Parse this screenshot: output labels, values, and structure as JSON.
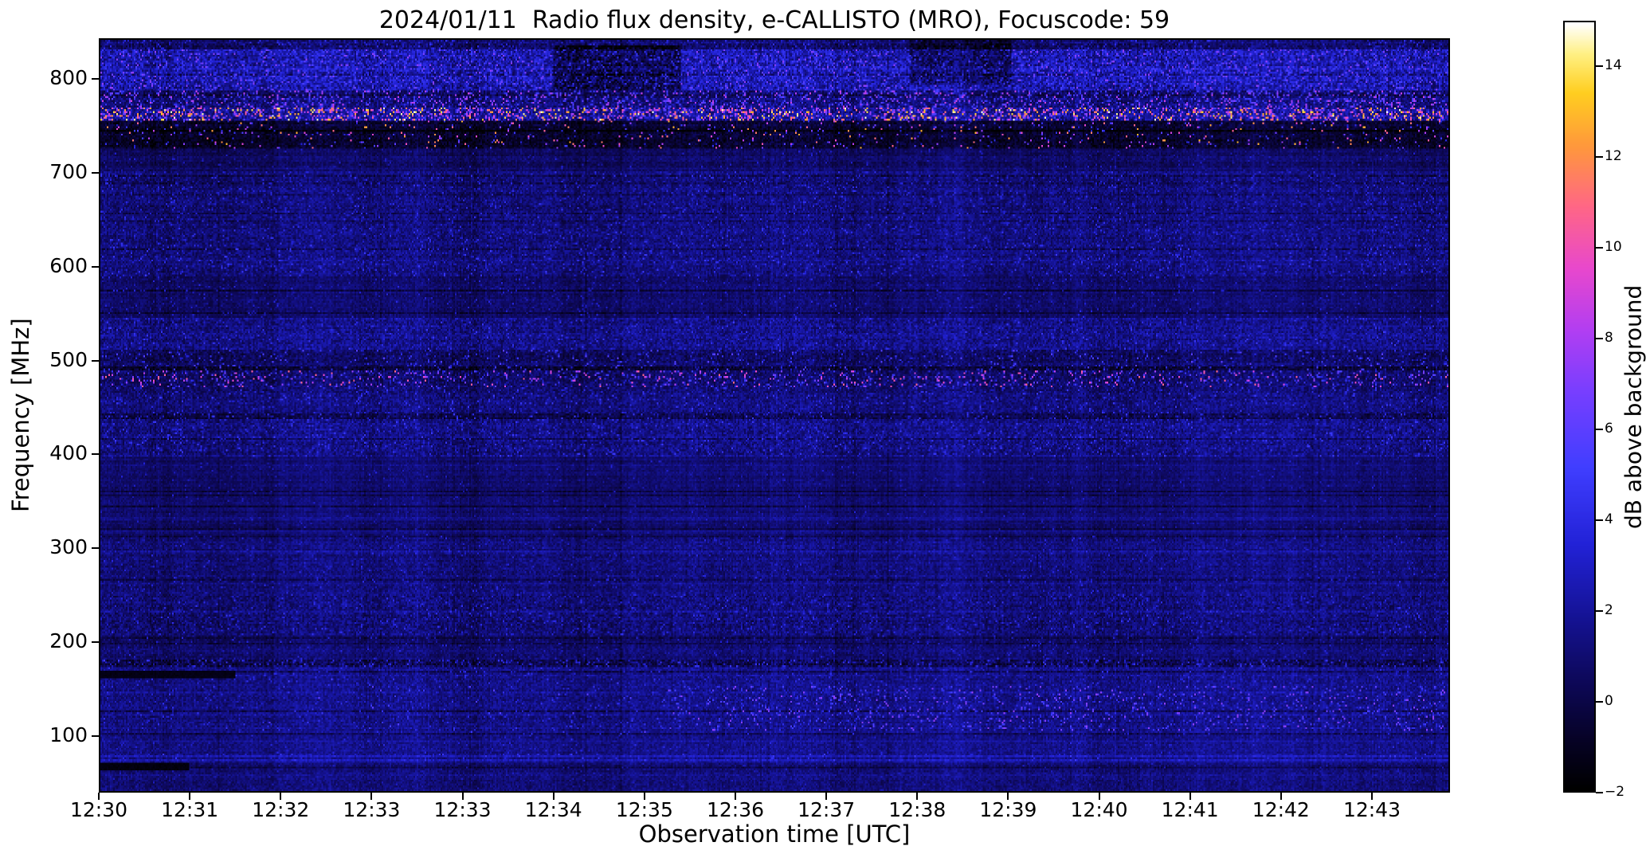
{
  "figure": {
    "title": "2024/01/11  Radio flux density, e-CALLISTO (MRO), Focuscode: 59"
  },
  "axes": {
    "xlabel": "Observation time [UTC]",
    "ylabel": "Frequency [MHz]",
    "x_tick_labels": [
      "12:30",
      "12:31",
      "12:32",
      "12:33",
      "12:33",
      "12:34",
      "12:35",
      "12:36",
      "12:37",
      "12:38",
      "12:39",
      "12:40",
      "12:41",
      "12:42",
      "12:43"
    ],
    "y_tick_values": [
      800,
      700,
      600,
      500,
      400,
      300,
      200,
      100
    ]
  },
  "colorbar": {
    "label": "dB above background",
    "limits": [
      -2,
      15
    ],
    "ticks": [
      {
        "value": 14,
        "label": "14"
      },
      {
        "value": 12,
        "label": "12"
      },
      {
        "value": 10,
        "label": "10"
      },
      {
        "value": 8,
        "label": "8"
      },
      {
        "value": 6,
        "label": "6"
      },
      {
        "value": 4,
        "label": "4"
      },
      {
        "value": 2,
        "label": "2"
      },
      {
        "value": 0,
        "label": "0"
      },
      {
        "value": -2,
        "label": "−2"
      }
    ]
  },
  "chart_data": {
    "type": "heatmap",
    "title": "2024/01/11  Radio flux density, e-CALLISTO (MRO), Focuscode: 59",
    "xlabel": "Observation time [UTC]",
    "ylabel": "Frequency [MHz]",
    "x_range_utc": [
      "12:30",
      "12:44"
    ],
    "x_tick_interval_fraction": 0.0673,
    "ylim_mhz": [
      40,
      843
    ],
    "color_limits_db": [
      -2,
      15
    ],
    "colormap": {
      "name": "gnuplot2-like (black-blue-purple-pink-orange-yellow-white)",
      "stops": [
        [
          0.0,
          0,
          0,
          0
        ],
        [
          0.06,
          6,
          2,
          35
        ],
        [
          0.14,
          13,
          8,
          88
        ],
        [
          0.22,
          20,
          18,
          145
        ],
        [
          0.32,
          34,
          34,
          215
        ],
        [
          0.42,
          64,
          62,
          255
        ],
        [
          0.52,
          120,
          62,
          255
        ],
        [
          0.6,
          178,
          62,
          242
        ],
        [
          0.68,
          232,
          72,
          205
        ],
        [
          0.76,
          255,
          102,
          135
        ],
        [
          0.84,
          255,
          152,
          60
        ],
        [
          0.91,
          255,
          206,
          32
        ],
        [
          0.96,
          255,
          240,
          130
        ],
        [
          1.0,
          255,
          255,
          255
        ]
      ]
    },
    "bands": [
      {
        "f": [
          832,
          843
        ],
        "base": 0.5,
        "noise": 1.1,
        "speckle_prob": 0.1,
        "speckle": [
          2,
          4.5
        ],
        "note": "dark mottled strip at top edge"
      },
      {
        "f": [
          788,
          832
        ],
        "base": 2.3,
        "noise": 1.7,
        "speckle_prob": 0.14,
        "speckle": [
          3.5,
          7.5
        ],
        "note": "bright purple-blue mottled RFI band ~790-830 MHz"
      },
      {
        "f": [
          770,
          788
        ],
        "base": 1.1,
        "noise": 1.3,
        "speckle_prob": 0.16,
        "speckle": [
          4,
          9
        ],
        "note": "mixed dark band with bright spots"
      },
      {
        "f": [
          757,
          770
        ],
        "base": 1.8,
        "noise": 1.5,
        "speckle_prob": 0.3,
        "speckle": [
          5,
          15
        ],
        "note": "strong RFI line ~760-770 MHz with orange/yellow bursts up to 15 dB"
      },
      {
        "f": [
          726,
          757
        ],
        "base": -0.8,
        "noise": 0.9,
        "speckle_prob": 0.05,
        "speckle": [
          3,
          13
        ],
        "note": "very dark band with sparse bright RFI dots"
      },
      {
        "f": [
          703,
          726
        ],
        "base": 0.6,
        "noise": 0.7,
        "speckle_prob": 0.02,
        "speckle": [
          2,
          3.5
        ],
        "note": "quiet dark blue band"
      },
      {
        "f": [
          624,
          703
        ],
        "base": 1.1,
        "noise": 1.0,
        "speckle_prob": 0.08,
        "speckle": [
          2,
          4.5
        ],
        "note": "textured speckly band 630-700 MHz"
      },
      {
        "f": [
          590,
          624
        ],
        "base": 1.2,
        "noise": 1.0,
        "speckle_prob": 0.09,
        "speckle": [
          2,
          5
        ],
        "note": "speckled rows near 600 MHz"
      },
      {
        "f": [
          545,
          590
        ],
        "base": 0.8,
        "noise": 0.7,
        "speckle_prob": 0.03,
        "speckle": [
          2,
          4
        ],
        "note": "quieter band"
      },
      {
        "f": [
          512,
          545
        ],
        "base": 1.5,
        "noise": 1.2,
        "speckle_prob": 0.06,
        "speckle": [
          2,
          5
        ],
        "note": "brighter blue band with dark rows ~530 MHz"
      },
      {
        "f": [
          489,
          512
        ],
        "base": 0.6,
        "noise": 1.0,
        "speckle_prob": 0.08,
        "speckle": [
          2,
          6
        ],
        "note": "dark speckled rows ~500 MHz"
      },
      {
        "f": [
          472,
          489
        ],
        "base": 0.7,
        "noise": 1.1,
        "speckle_prob": 0.13,
        "speckle": [
          3,
          11
        ],
        "note": "RFI speckle band ~480 MHz with pink/orange dots"
      },
      {
        "f": [
          438,
          472
        ],
        "base": 1.1,
        "noise": 1.0,
        "speckle_prob": 0.08,
        "speckle": [
          2,
          5
        ],
        "note": "speckled blue band"
      },
      {
        "f": [
          398,
          438
        ],
        "base": 1.2,
        "noise": 1.1,
        "speckle_prob": 0.1,
        "speckle": [
          2,
          5
        ],
        "note": "noisy band ~410-420 MHz"
      },
      {
        "f": [
          313,
          398
        ],
        "base": 0.85,
        "noise": 0.6,
        "speckle_prob": 0.015,
        "speckle": [
          2,
          3.5
        ],
        "note": "smooth quiet region 320-400 MHz"
      },
      {
        "f": [
          251,
          313
        ],
        "base": 1.15,
        "noise": 0.85,
        "speckle_prob": 0.04,
        "speckle": [
          2,
          4
        ],
        "note": "mottled region ~260-300 MHz"
      },
      {
        "f": [
          206,
          251
        ],
        "base": 1.0,
        "noise": 1.1,
        "speckle_prob": 0.07,
        "speckle": [
          2,
          4.5
        ],
        "note": "striped band with dark rows ~220 MHz"
      },
      {
        "f": [
          180,
          206
        ],
        "base": 0.9,
        "noise": 0.8,
        "speckle_prob": 0.03,
        "speckle": [
          2,
          4
        ],
        "note": "blue band"
      },
      {
        "f": [
          172,
          180
        ],
        "base": 0.2,
        "noise": 1.3,
        "speckle_prob": 0.12,
        "speckle": [
          2,
          5
        ],
        "note": "thin dark speckled line ~176 MHz"
      },
      {
        "f": [
          104,
          172
        ],
        "base": 1.4,
        "noise": 0.9,
        "speckle_prob": 0.05,
        "speckle": [
          2,
          4.5
        ],
        "note": "blue band; purple interference patches in right half"
      },
      {
        "f": [
          81,
          104
        ],
        "base": 1.5,
        "noise": 0.8,
        "speckle_prob": 0.03,
        "speckle": [
          2,
          4
        ],
        "note": "blue band"
      },
      {
        "f": [
          72,
          81
        ],
        "base": 2.6,
        "noise": 0.8,
        "speckle_prob": 0.04,
        "speckle": [
          3,
          5
        ],
        "note": "bright blue line ~76 MHz"
      },
      {
        "f": [
          40,
          72
        ],
        "base": 1.1,
        "noise": 0.8,
        "speckle_prob": 0.02,
        "speckle": [
          2,
          3
        ],
        "note": "bottom band"
      }
    ],
    "features": [
      {
        "t": [
          0.0,
          0.065
        ],
        "f": [
          62,
          70
        ],
        "mode": "set",
        "db": -1.6,
        "note": "black streak lower-left ~12:30-12:31"
      },
      {
        "t": [
          0.0,
          0.1
        ],
        "f": [
          160,
          168
        ],
        "mode": "set",
        "db": -1.4,
        "note": "black streak at left edge ~165 MHz"
      },
      {
        "t": [
          0.42,
          1.0
        ],
        "f": [
          105,
          152
        ],
        "mode": "speckle",
        "prob": 0.07,
        "range": [
          3.5,
          7.5
        ],
        "note": "purple interference patches, right half, 105-150 MHz"
      },
      {
        "t": [
          0.12,
          0.42
        ],
        "f": [
          100,
          160
        ],
        "mode": "speckle",
        "prob": 0.015,
        "range": [
          3,
          6
        ],
        "note": "sparse purple dots left-middle"
      },
      {
        "t": [
          0.335,
          0.43
        ],
        "f": [
          788,
          836
        ],
        "mode": "add",
        "db": -2.2,
        "note": "darker patch in upper band ~12:35"
      },
      {
        "t": [
          0.6,
          0.675
        ],
        "f": [
          795,
          843
        ],
        "mode": "add",
        "db": -1.8,
        "note": "darker patch in upper band ~12:38-12:39"
      }
    ]
  }
}
